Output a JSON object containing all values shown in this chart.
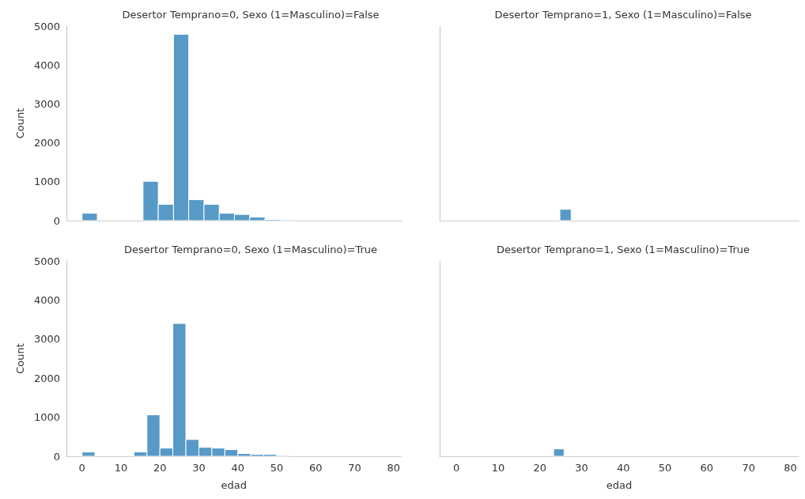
{
  "chart_data": [
    {
      "type": "histogram",
      "title": "Desertor Temprano=0, Sexo (1=Masculino)=False",
      "ylabel": "Count",
      "color": "#5799c7",
      "bins": [
        0,
        3.9,
        7.8,
        11.7,
        15.6,
        19.5,
        23.4,
        27.3,
        31.2,
        35.1,
        39,
        42.9,
        46.8,
        50.7,
        54.6,
        58.5,
        62.4,
        66.3,
        70.2,
        74.1,
        78
      ],
      "values": [
        190,
        0,
        0,
        0,
        1010,
        420,
        4790,
        540,
        420,
        190,
        160,
        90,
        30,
        20,
        0,
        0,
        0,
        0,
        0,
        0
      ],
      "xlim": [
        -4,
        82
      ],
      "ylim": [
        0,
        5000
      ],
      "xticks": [
        0,
        10,
        20,
        30,
        40,
        50,
        60,
        70,
        80
      ],
      "yticks": [
        0,
        1000,
        2000,
        3000,
        4000,
        5000
      ],
      "tick_labels": "y",
      "grid": false
    },
    {
      "type": "histogram",
      "title": "Desertor Temprano=1, Sexo (1=Masculino)=False",
      "color": "#5799c7",
      "bins": [
        24.8,
        27.5
      ],
      "values": [
        290
      ],
      "xlim": [
        -4,
        82
      ],
      "ylim": [
        0,
        5000
      ],
      "xticks": [
        0,
        10,
        20,
        30,
        40,
        50,
        60,
        70,
        80
      ],
      "yticks": [
        0,
        1000,
        2000,
        3000,
        4000,
        5000
      ],
      "tick_labels": false,
      "grid": false
    },
    {
      "type": "histogram",
      "title": "Desertor Temprano=0, Sexo (1=Masculino)=True",
      "xlabel": "edad",
      "ylabel": "Count",
      "color": "#5799c7",
      "bins": [
        0,
        3.33,
        6.67,
        10,
        13.33,
        16.67,
        20,
        23.33,
        26.67,
        30,
        33.33,
        36.67,
        40,
        43.33,
        46.67,
        50,
        53.33,
        56.67,
        60,
        63.33,
        66.67,
        70,
        73.33,
        76.67,
        80
      ],
      "values": [
        110,
        0,
        0,
        0,
        110,
        1060,
        210,
        3400,
        430,
        230,
        210,
        170,
        70,
        50,
        50,
        20,
        0,
        0,
        0,
        0,
        0,
        0,
        0,
        0
      ],
      "xlim": [
        -4,
        82
      ],
      "ylim": [
        0,
        5000
      ],
      "xticks": [
        0,
        10,
        20,
        30,
        40,
        50,
        60,
        70,
        80
      ],
      "yticks": [
        0,
        1000,
        2000,
        3000,
        4000,
        5000
      ],
      "grid": false
    },
    {
      "type": "histogram",
      "title": "Desertor Temprano=1, Sexo (1=Masculino)=True",
      "xlabel": "edad",
      "color": "#5799c7",
      "bins": [
        23.3,
        25.8
      ],
      "values": [
        190
      ],
      "xlim": [
        -4,
        82
      ],
      "ylim": [
        0,
        5000
      ],
      "xticks": [
        0,
        10,
        20,
        30,
        40,
        50,
        60,
        70,
        80
      ],
      "yticks": [
        0,
        1000,
        2000,
        3000,
        4000,
        5000
      ],
      "tick_labels": "x",
      "grid": false
    }
  ]
}
